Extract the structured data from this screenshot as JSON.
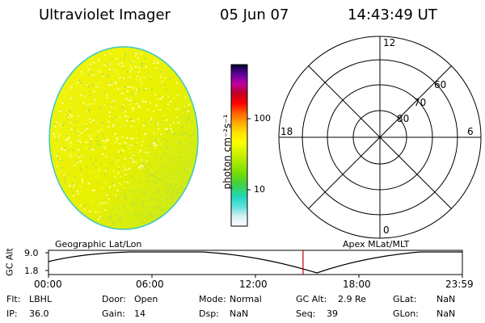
{
  "header": {
    "instrument": "Ultraviolet Imager",
    "date": "05 Jun 07",
    "time": "14:43:49 UT"
  },
  "colorbar": {
    "unit_label": "photon cm⁻²s⁻¹",
    "tick_labels": [
      "100",
      "10"
    ],
    "scale": "log"
  },
  "polar_plot": {
    "mlt_labels": {
      "top": "12",
      "left": "18",
      "right": "6",
      "bottom": "0"
    },
    "lat_labels": [
      "60",
      "70",
      "80"
    ]
  },
  "altitude_plot": {
    "y_axis_label": "GC Alt",
    "y_ticks": [
      "9.0",
      "1.8"
    ],
    "left_caption": "Geographic Lat/Lon",
    "right_caption": "Apex MLat/MLT",
    "x_ticks": [
      "00:00",
      "06:00",
      "12:00",
      "18:00",
      "23:59"
    ],
    "current_time_fraction": 0.615,
    "marker_color": "#c00000"
  },
  "status": {
    "rows": [
      {
        "c1_label": "Flt:",
        "c1_value": "LBHL",
        "c2_label": "Door:",
        "c2_value": "Open",
        "c3_label": "Mode:",
        "c3_value": "Normal",
        "c4_label": "GC Alt:",
        "c4_value": "2.9 Re",
        "c5_label": "GLat:",
        "c5_value": "NaN"
      },
      {
        "c1_label": "IP:",
        "c1_value": "36.0",
        "c2_label": "Gain:",
        "c2_value": "14",
        "c3_label": "Dsp:",
        "c3_value": "NaN",
        "c4_label": "Seq:",
        "c4_value": "39",
        "c5_label": "GLon:",
        "c5_value": "NaN"
      }
    ]
  },
  "colors": {
    "disk_fill": "#f0f000",
    "disk_rim": "#38c8c8",
    "grid": "#000000"
  }
}
